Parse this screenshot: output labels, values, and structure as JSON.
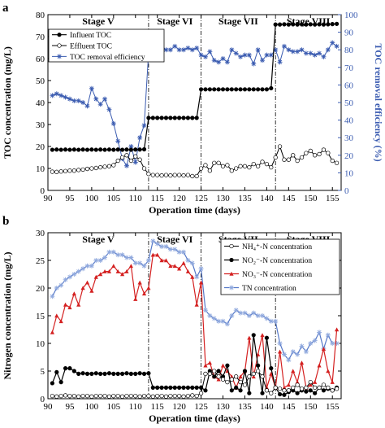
{
  "chart_data": [
    {
      "panel_label": "a",
      "type": "line",
      "xlabel": "Operation time (days)",
      "ylabel": "TOC concentration (mg/L)",
      "y2label": "TOC removal efficiency (%)",
      "xlim": [
        90,
        157
      ],
      "ylim": [
        0,
        80
      ],
      "y2lim": [
        0,
        100
      ],
      "xticks": [
        90,
        95,
        100,
        105,
        110,
        115,
        120,
        125,
        130,
        135,
        140,
        145,
        150,
        155
      ],
      "yticks": [
        0,
        10,
        20,
        30,
        40,
        50,
        60,
        70,
        80
      ],
      "y2ticks": [
        0,
        10,
        20,
        30,
        40,
        50,
        60,
        70,
        80,
        90,
        100
      ],
      "stages": [
        {
          "label": "Stage V",
          "start": 90,
          "end": 113
        },
        {
          "label": "Stage VI",
          "start": 113,
          "end": 125
        },
        {
          "label": "Stage VII",
          "start": 125,
          "end": 142
        },
        {
          "label": "Stage VIII",
          "start": 142,
          "end": 157
        }
      ],
      "legend": {
        "position": "top-left"
      },
      "colors": {
        "influent": "#000000",
        "effluent": "#000000",
        "removal": "#3a5bb0"
      },
      "series": [
        {
          "name": "Influent TOC",
          "x": [
            91,
            92,
            93,
            94,
            95,
            96,
            97,
            98,
            99,
            100,
            101,
            102,
            103,
            104,
            105,
            106,
            107,
            108,
            109,
            110,
            111,
            112,
            113,
            114,
            115,
            116,
            117,
            118,
            119,
            120,
            121,
            122,
            123,
            124,
            125,
            126,
            127,
            128,
            129,
            130,
            131,
            132,
            133,
            134,
            135,
            136,
            137,
            138,
            139,
            140,
            141,
            142,
            143,
            144,
            145,
            146,
            147,
            148,
            149,
            150,
            151,
            152,
            153,
            154,
            155,
            156
          ],
          "values": [
            18.5,
            18.6,
            18.5,
            18.6,
            18.5,
            18.6,
            18.5,
            18.6,
            18.5,
            18.6,
            18.5,
            18.6,
            18.5,
            18.6,
            18.5,
            18.6,
            18.5,
            18.6,
            18.5,
            18.6,
            18.6,
            18.7,
            33,
            33,
            33,
            33,
            33,
            33,
            33,
            33,
            33,
            33,
            33,
            33,
            46,
            46,
            46,
            46,
            46,
            46,
            46,
            46,
            46,
            46,
            46,
            46,
            46,
            46,
            46,
            46,
            46.5,
            75.5,
            75.5,
            75.6,
            75.5,
            75.6,
            75.5,
            75.6,
            75.5,
            75.6,
            75.5,
            75.6,
            75.5,
            75.6,
            75.7,
            75.8
          ]
        },
        {
          "name": "Effluent TOC",
          "x": [
            91,
            92,
            93,
            94,
            95,
            96,
            97,
            98,
            99,
            100,
            101,
            102,
            103,
            104,
            105,
            106,
            107,
            108,
            109,
            110,
            111,
            112,
            113,
            114,
            115,
            116,
            117,
            118,
            119,
            120,
            121,
            122,
            123,
            124,
            125,
            126,
            127,
            128,
            129,
            130,
            131,
            132,
            133,
            134,
            135,
            136,
            137,
            138,
            139,
            140,
            141,
            142,
            143,
            144,
            145,
            146,
            147,
            148,
            149,
            150,
            151,
            152,
            153,
            154,
            155,
            156
          ],
          "values": [
            8.5,
            8.4,
            8.6,
            8.8,
            9,
            9,
            9.3,
            9.5,
            9.8,
            10,
            10.2,
            10.5,
            10.8,
            11,
            11.5,
            13.5,
            15,
            16,
            13.5,
            15.5,
            14,
            10,
            7.5,
            7,
            7,
            6.8,
            7,
            6.8,
            7,
            7,
            6.8,
            7,
            6.5,
            6.5,
            10,
            11.5,
            9,
            12.5,
            12.5,
            11,
            11.5,
            9,
            10,
            11,
            11,
            10.5,
            12,
            11,
            13,
            12,
            10.5,
            15,
            20,
            14,
            14,
            16,
            13.5,
            15,
            17,
            18,
            16,
            16.5,
            18.5,
            17,
            13.5,
            12.5
          ]
        },
        {
          "name": "TOC removal efficiency",
          "axis": "right",
          "x": [
            91,
            92,
            93,
            94,
            95,
            96,
            97,
            98,
            99,
            100,
            101,
            102,
            103,
            104,
            105,
            106,
            107,
            108,
            109,
            110,
            111,
            112,
            113,
            114,
            115,
            116,
            117,
            118,
            119,
            120,
            121,
            122,
            123,
            124,
            125,
            126,
            127,
            128,
            129,
            130,
            131,
            132,
            133,
            134,
            135,
            136,
            137,
            138,
            139,
            140,
            141,
            142,
            143,
            144,
            145,
            146,
            147,
            148,
            149,
            150,
            151,
            152,
            153,
            154,
            155,
            156
          ],
          "values": [
            54,
            55,
            54,
            53,
            52,
            51,
            51,
            50,
            48,
            58,
            52,
            49,
            52,
            46,
            38,
            28,
            18,
            14,
            25,
            16,
            30,
            37,
            78,
            80,
            80,
            81,
            80,
            80,
            82,
            80,
            80,
            81,
            80,
            81,
            77,
            76,
            79,
            74,
            73,
            75,
            73,
            80,
            78,
            76,
            77,
            77,
            72,
            80,
            74,
            77,
            77,
            80,
            73,
            82,
            80,
            79,
            79,
            80,
            78,
            78,
            77,
            78,
            76,
            80,
            84,
            82
          ]
        }
      ]
    },
    {
      "panel_label": "b",
      "type": "line",
      "xlabel": "Operation time (days)",
      "ylabel": "Nitrogen concentration (mg/L)",
      "xlim": [
        90,
        157
      ],
      "ylim": [
        0,
        30
      ],
      "xticks": [
        90,
        95,
        100,
        105,
        110,
        115,
        120,
        125,
        130,
        135,
        140,
        145,
        150,
        155
      ],
      "yticks": [
        0,
        5,
        10,
        15,
        20,
        25,
        30
      ],
      "stages": [
        {
          "label": "Stage V",
          "start": 90,
          "end": 113
        },
        {
          "label": "Stage VI",
          "start": 113,
          "end": 125
        },
        {
          "label": "Stage VII",
          "start": 125,
          "end": 142
        },
        {
          "label": "Stage VIII",
          "start": 142,
          "end": 157
        }
      ],
      "legend": {
        "position": "top-right"
      },
      "colors": {
        "nh4": "#000000",
        "no2": "#000000",
        "no3": "#d42020",
        "tn": "#5578c8"
      },
      "series": [
        {
          "name": "NH₄⁺-N concentration",
          "x": [
            91,
            92,
            93,
            94,
            95,
            96,
            97,
            98,
            99,
            100,
            101,
            102,
            103,
            104,
            105,
            106,
            107,
            108,
            109,
            110,
            111,
            112,
            113,
            114,
            115,
            116,
            117,
            118,
            119,
            120,
            121,
            122,
            123,
            124,
            125,
            126,
            127,
            128,
            129,
            130,
            131,
            132,
            133,
            134,
            135,
            136,
            137,
            138,
            139,
            140,
            141,
            142,
            143,
            144,
            145,
            146,
            147,
            148,
            149,
            150,
            151,
            152,
            153,
            154,
            155,
            156
          ],
          "values": [
            0.5,
            0.4,
            0.5,
            0.6,
            0.5,
            0.5,
            0.4,
            0.5,
            0.5,
            0.4,
            0.5,
            0.5,
            0.5,
            0.4,
            0.5,
            0.5,
            0.4,
            0.5,
            0.5,
            0.5,
            0.4,
            0.5,
            0.5,
            0.4,
            0.5,
            0.5,
            0.4,
            0.5,
            0.5,
            0.5,
            0.4,
            0.5,
            0.6,
            0.5,
            1,
            4.5,
            4.5,
            5,
            4,
            3.5,
            3,
            3.5,
            4,
            3,
            2.5,
            4,
            4.5,
            5,
            4,
            1.5,
            1,
            2,
            1.8,
            1.5,
            1.5,
            2,
            2.5,
            1.8,
            2,
            3,
            2,
            2,
            2.5,
            2,
            1.5,
            1.8
          ]
        },
        {
          "name": "NO₂⁻-N concentration",
          "x": [
            91,
            92,
            93,
            94,
            95,
            96,
            97,
            98,
            99,
            100,
            101,
            102,
            103,
            104,
            105,
            106,
            107,
            108,
            109,
            110,
            111,
            112,
            113,
            114,
            115,
            116,
            117,
            118,
            119,
            120,
            121,
            122,
            123,
            124,
            125,
            126,
            127,
            128,
            129,
            130,
            131,
            132,
            133,
            134,
            135,
            136,
            137,
            138,
            139,
            140,
            141,
            142,
            143,
            144,
            145,
            146,
            147,
            148,
            149,
            150,
            151,
            152,
            153,
            154,
            155,
            156
          ],
          "values": [
            2.8,
            4.8,
            3,
            5.5,
            5.5,
            5,
            4.5,
            4.6,
            4.5,
            4.5,
            4.6,
            4.5,
            4.5,
            4.6,
            4.5,
            4.5,
            4.5,
            4.6,
            4.5,
            4.5,
            4.6,
            4.5,
            4.6,
            2,
            2,
            2,
            2,
            2,
            2,
            2,
            2,
            2,
            2,
            2,
            2,
            1.5,
            5,
            4,
            5,
            4,
            6,
            1.5,
            2,
            1.5,
            5,
            1,
            11.5,
            6,
            1,
            11,
            5.5,
            2,
            0.8,
            0.7,
            1.2,
            1.5,
            1,
            1.5,
            1.3,
            1.5,
            1,
            2,
            1.5,
            1.8,
            1.5,
            2
          ]
        },
        {
          "name": "NO₃⁻-N concentration",
          "x": [
            91,
            92,
            93,
            94,
            95,
            96,
            97,
            98,
            99,
            100,
            101,
            102,
            103,
            104,
            105,
            106,
            107,
            108,
            109,
            110,
            111,
            112,
            113,
            114,
            115,
            116,
            117,
            118,
            119,
            120,
            121,
            122,
            123,
            124,
            125,
            126,
            127,
            128,
            129,
            130,
            131,
            132,
            133,
            134,
            135,
            136,
            137,
            138,
            139,
            140,
            141,
            142,
            143,
            144,
            145,
            146,
            147,
            148,
            149,
            150,
            151,
            152,
            153,
            154,
            155,
            156
          ],
          "values": [
            12,
            15,
            14,
            17,
            16.5,
            19,
            17,
            20,
            21,
            19.5,
            22,
            22.5,
            23,
            23,
            24,
            23,
            22.5,
            23,
            24,
            18,
            21,
            19,
            20,
            26,
            26,
            25,
            25,
            24,
            24,
            23.5,
            24.5,
            23,
            22,
            17,
            21,
            6,
            6.5,
            4,
            3.5,
            6,
            5,
            4,
            2,
            4,
            5,
            11,
            4,
            8,
            11.5,
            2,
            4.5,
            2,
            8.5,
            2,
            2.5,
            5,
            3,
            6.5,
            2,
            2.5,
            3,
            6,
            9,
            5,
            3,
            12.5
          ]
        },
        {
          "name": "TN concentration",
          "x": [
            91,
            92,
            93,
            94,
            95,
            96,
            97,
            98,
            99,
            100,
            101,
            102,
            103,
            104,
            105,
            106,
            107,
            108,
            109,
            110,
            111,
            112,
            113,
            114,
            115,
            116,
            117,
            118,
            119,
            120,
            121,
            122,
            123,
            124,
            125,
            126,
            127,
            128,
            129,
            130,
            131,
            132,
            133,
            134,
            135,
            136,
            137,
            138,
            139,
            140,
            141,
            142,
            143,
            144,
            145,
            146,
            147,
            148,
            149,
            150,
            151,
            152,
            153,
            154,
            155,
            156
          ],
          "values": [
            18.5,
            20,
            20.5,
            21.5,
            22,
            22.5,
            23,
            23.5,
            24,
            24,
            25,
            25,
            25.5,
            26.5,
            26.5,
            26,
            26,
            25.5,
            25.5,
            24.5,
            24.5,
            24,
            25,
            28.5,
            28,
            27.5,
            27.5,
            27,
            27,
            26.5,
            26.5,
            25,
            24.5,
            22,
            23.5,
            16,
            15,
            14.5,
            14,
            14,
            13.5,
            15,
            16,
            15.5,
            15.5,
            15,
            15.5,
            15,
            15,
            14.5,
            14,
            14,
            10,
            8,
            7,
            8.5,
            8,
            9.5,
            8.5,
            10,
            10.5,
            12,
            9,
            11.5,
            10,
            10
          ]
        }
      ]
    }
  ]
}
